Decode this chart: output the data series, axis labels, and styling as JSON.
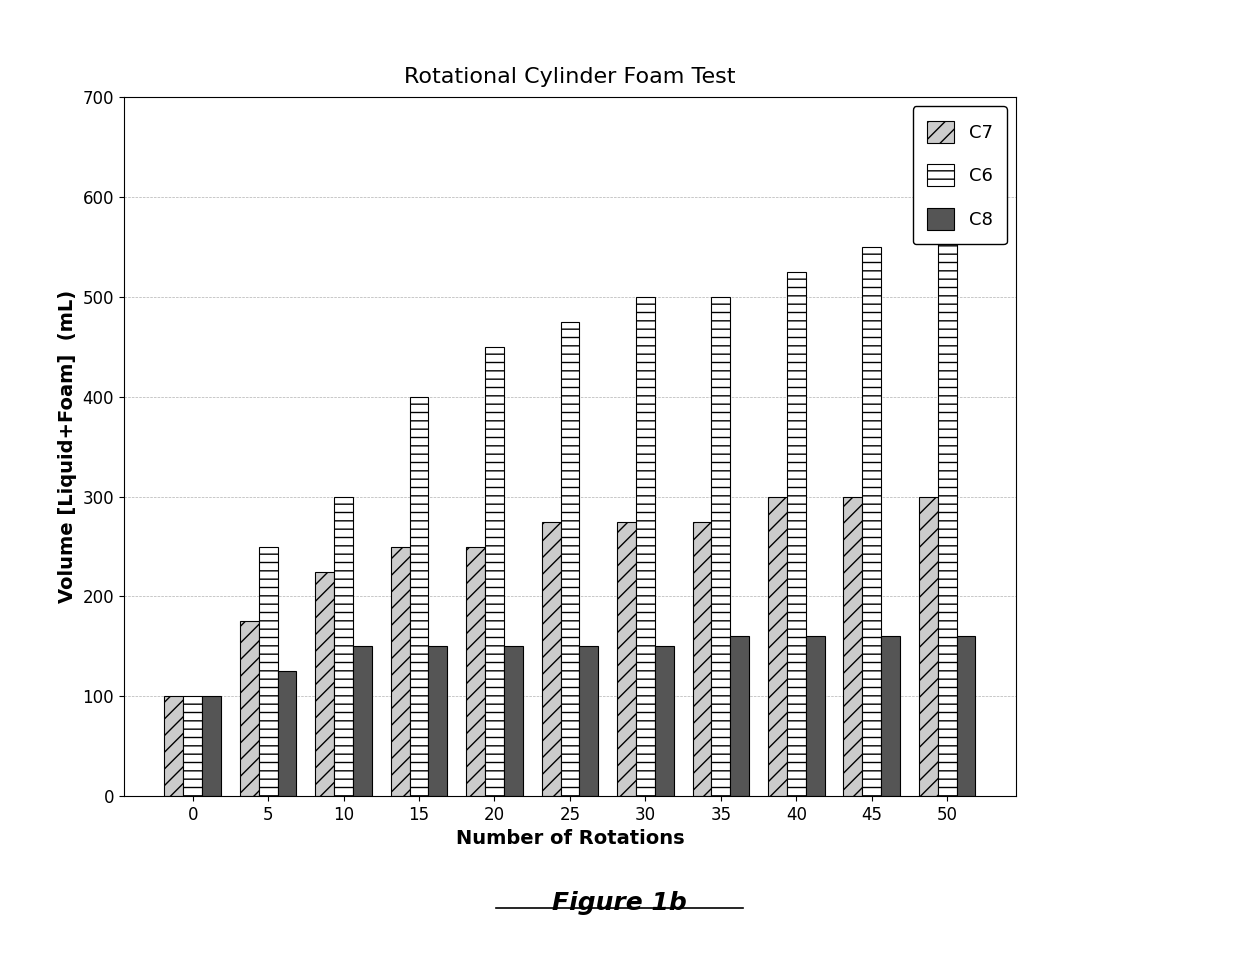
{
  "title": "Rotational Cylinder Foam Test",
  "xlabel": "Number of Rotations",
  "ylabel": "Volume [Liquid+Foam]  (mL)",
  "categories": [
    0,
    5,
    10,
    15,
    20,
    25,
    30,
    35,
    40,
    45,
    50
  ],
  "C7": [
    100,
    175,
    225,
    250,
    250,
    275,
    275,
    275,
    300,
    300,
    300
  ],
  "C6": [
    100,
    250,
    300,
    400,
    450,
    475,
    500,
    500,
    525,
    550,
    600
  ],
  "C8": [
    100,
    125,
    150,
    150,
    150,
    150,
    150,
    160,
    160,
    160,
    160
  ],
  "C7_color": "#cccccc",
  "C6_color": "#ffffff",
  "C8_color": "#555555",
  "ylim": [
    0,
    700
  ],
  "yticks": [
    0,
    100,
    200,
    300,
    400,
    500,
    600,
    700
  ],
  "legend_labels": [
    "C7",
    "C6",
    "C8"
  ],
  "figure_label": "Figure 1b",
  "background_color": "#ffffff",
  "grid_color": "#aaaaaa",
  "title_fontsize": 16,
  "axis_label_fontsize": 14,
  "tick_fontsize": 12
}
